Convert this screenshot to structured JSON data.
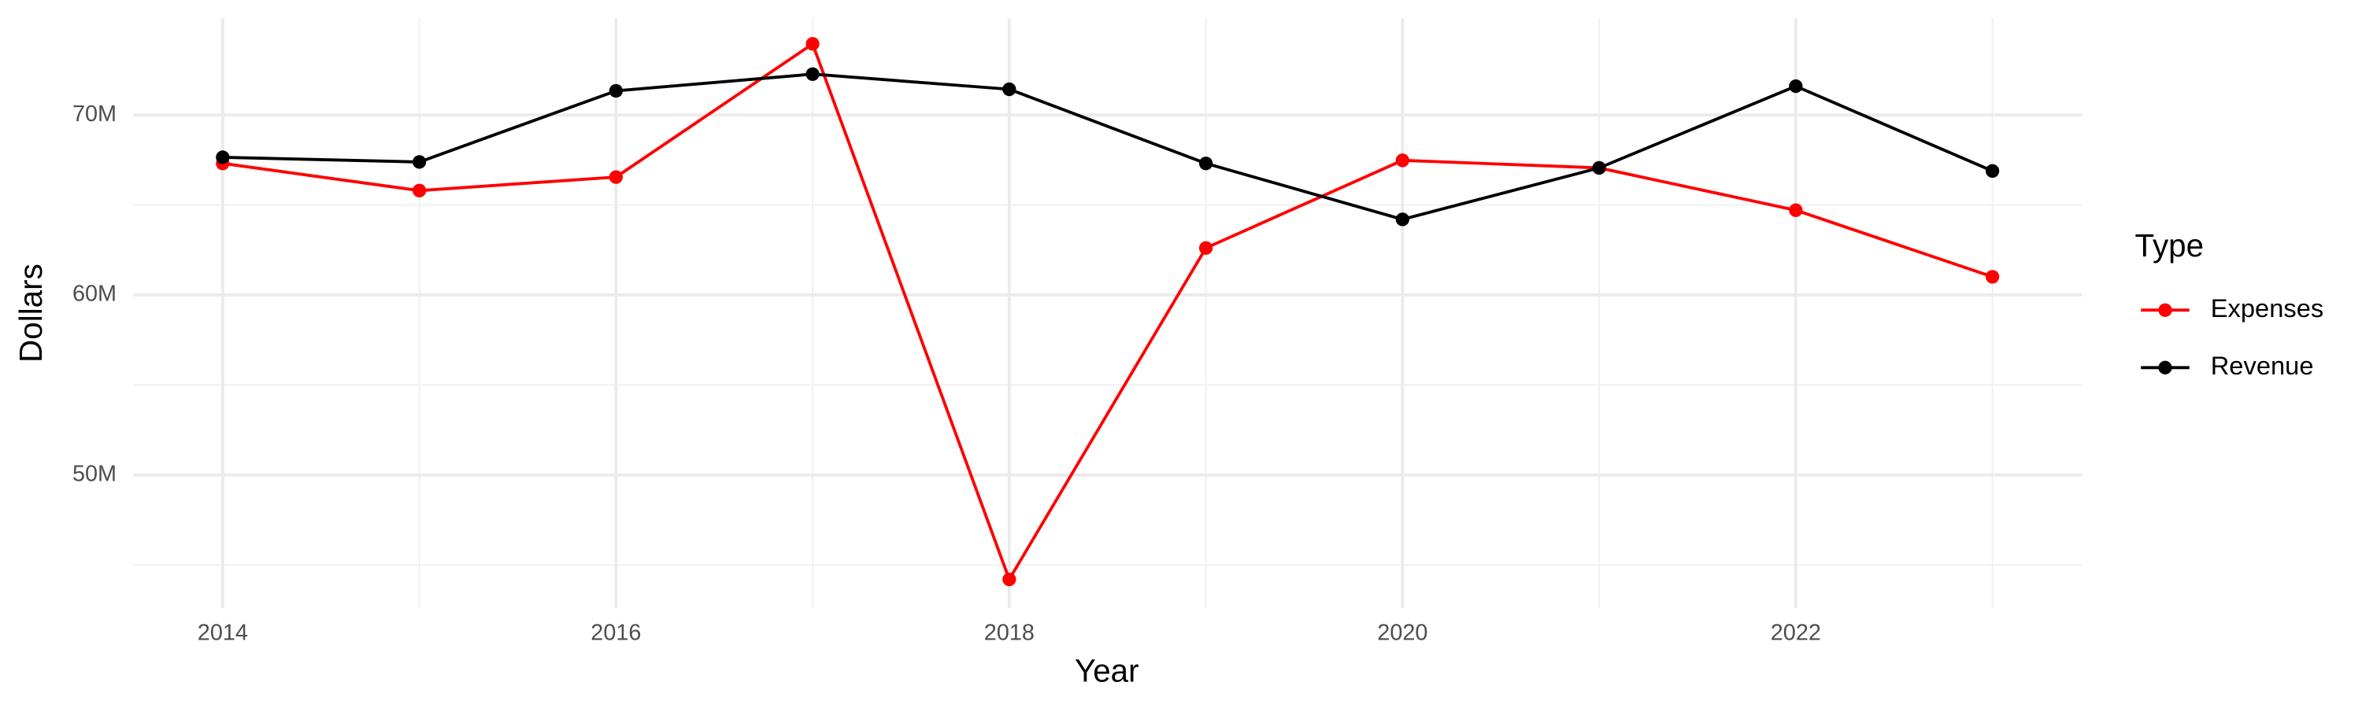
{
  "chart_data": {
    "type": "line",
    "x_label": "Year",
    "y_label": "Dollars",
    "legend_title": "Type",
    "x": [
      2014,
      2015,
      2016,
      2017,
      2018,
      2019,
      2020,
      2021,
      2022,
      2023
    ],
    "series": [
      {
        "name": "Expenses",
        "color": "#ff0000",
        "values": [
          67310000,
          65800000,
          66550000,
          73950000,
          44200000,
          62610000,
          67480000,
          67060000,
          64710000,
          61010000
        ]
      },
      {
        "name": "Revenue",
        "color": "#000000",
        "values": [
          67650000,
          67390000,
          71340000,
          72270000,
          71430000,
          67310000,
          64200000,
          67060000,
          71600000,
          66890000
        ]
      }
    ],
    "xlim": [
      2013.545,
      2023.455
    ],
    "xticks": [
      2014,
      2016,
      2018,
      2020,
      2022
    ],
    "x_minor_ticks": [
      2015,
      2017,
      2019,
      2021,
      2023
    ],
    "ylim": [
      42600000,
      75380000
    ],
    "yticks": [
      {
        "value": 50000000,
        "label": "50M"
      },
      {
        "value": 60000000,
        "label": "60M"
      },
      {
        "value": 70000000,
        "label": "70M"
      }
    ],
    "y_minor_ticks": [
      45000000,
      55000000,
      65000000
    ],
    "grid": true,
    "legend": "right"
  }
}
